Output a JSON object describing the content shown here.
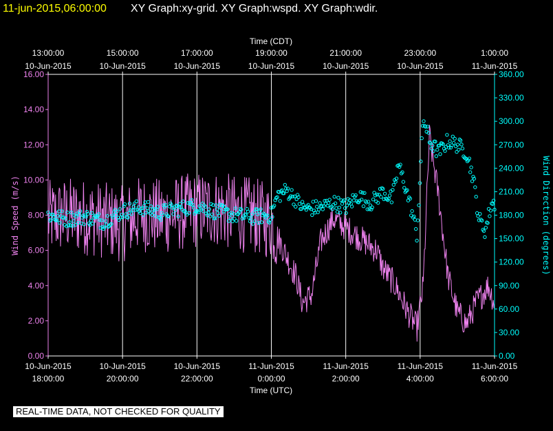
{
  "header": {
    "timestamp": "11-jun-2015,06:00:00",
    "graphs": "XY Graph:xy-grid.  XY Graph:wspd.  XY Graph:wdir."
  },
  "colors": {
    "background": "#000000",
    "timestamp": "#ffff00",
    "header": "#ffffff",
    "grid": "#ffffff",
    "wind_speed": "#ee82ee",
    "wind_direction": "#00ffff"
  },
  "disclaimer": "REAL-TIME DATA, NOT CHECKED FOR QUALITY",
  "chart_data": {
    "type": "line",
    "title": "",
    "top_axis": {
      "label": "Time (CDT)",
      "ticks": [
        {
          "time": "13:00:00",
          "date": "10-Jun-2015"
        },
        {
          "time": "15:00:00",
          "date": "10-Jun-2015"
        },
        {
          "time": "17:00:00",
          "date": "10-Jun-2015"
        },
        {
          "time": "19:00:00",
          "date": "10-Jun-2015"
        },
        {
          "time": "21:00:00",
          "date": "10-Jun-2015"
        },
        {
          "time": "23:00:00",
          "date": "10-Jun-2015"
        },
        {
          "time": "1:00:00",
          "date": "11-Jun-2015"
        }
      ]
    },
    "bottom_axis": {
      "label": "Time (UTC)",
      "ticks": [
        {
          "date": "10-Jun-2015",
          "time": "18:00:00"
        },
        {
          "date": "10-Jun-2015",
          "time": "20:00:00"
        },
        {
          "date": "10-Jun-2015",
          "time": "22:00:00"
        },
        {
          "date": "11-Jun-2015",
          "time": "0:00:00"
        },
        {
          "date": "11-Jun-2015",
          "time": "2:00:00"
        },
        {
          "date": "11-Jun-2015",
          "time": "4:00:00"
        },
        {
          "date": "11-Jun-2015",
          "time": "6:00:00"
        }
      ],
      "xlim": [
        "2015-06-10T18:00:00Z",
        "2015-06-11T06:00:00Z"
      ]
    },
    "left_axis": {
      "label": "Wind Speed (m/s)",
      "ylim": [
        0,
        16
      ],
      "ticks": [
        "0.00",
        "2.00",
        "4.00",
        "6.00",
        "8.00",
        "10.00",
        "12.00",
        "14.00",
        "16.00"
      ]
    },
    "right_axis": {
      "label": "Wind Direction (degrees)",
      "ylim": [
        0,
        360
      ],
      "ticks": [
        "0.00",
        "30.00",
        "60.00",
        "90.00",
        "120.00",
        "150.00",
        "180.00",
        "210.00",
        "240.00",
        "270.00",
        "300.00",
        "330.00",
        "360.00"
      ]
    },
    "grid": "vertical lines at bottom-axis ticks",
    "series": [
      {
        "kind": "line",
        "axis": "left",
        "x": [
          "2015-06-10T18:00Z",
          "2015-06-10T18:30Z",
          "2015-06-10T19:00Z",
          "2015-06-10T19:30Z",
          "2015-06-10T20:00Z",
          "2015-06-10T20:30Z",
          "2015-06-10T21:00Z",
          "2015-06-10T21:30Z",
          "2015-06-10T22:00Z",
          "2015-06-10T22:30Z",
          "2015-06-10T23:00Z",
          "2015-06-10T23:30Z",
          "2015-06-11T00:00Z",
          "2015-06-11T00:20Z",
          "2015-06-11T00:40Z",
          "2015-06-11T00:50Z",
          "2015-06-11T01:05Z",
          "2015-06-11T01:20Z",
          "2015-06-11T01:40Z",
          "2015-06-11T02:00Z",
          "2015-06-11T02:30Z",
          "2015-06-11T02:50Z",
          "2015-06-11T03:00Z",
          "2015-06-11T03:20Z",
          "2015-06-11T03:40Z",
          "2015-06-11T03:55Z",
          "2015-06-11T04:05Z",
          "2015-06-11T04:15Z",
          "2015-06-11T04:30Z",
          "2015-06-11T04:45Z",
          "2015-06-11T05:00Z",
          "2015-06-11T05:15Z",
          "2015-06-11T05:30Z",
          "2015-06-11T05:50Z",
          "2015-06-11T06:00Z"
        ],
        "values": [
          7.8,
          8.0,
          7.9,
          7.7,
          7.5,
          8.1,
          7.9,
          8.1,
          8.3,
          8.4,
          8.1,
          8.0,
          7.6,
          6.0,
          4.5,
          3.0,
          3.5,
          6.5,
          7.8,
          7.3,
          6.5,
          6.0,
          5.0,
          4.0,
          2.5,
          1.6,
          4.0,
          12.5,
          9.0,
          4.5,
          2.5,
          1.8,
          3.0,
          4.0,
          3.0
        ]
      },
      {
        "kind": "scatter",
        "axis": "right",
        "x": [
          "2015-06-10T18:00Z",
          "2015-06-10T18:30Z",
          "2015-06-10T19:00Z",
          "2015-06-10T19:30Z",
          "2015-06-10T20:00Z",
          "2015-06-10T20:30Z",
          "2015-06-10T21:00Z",
          "2015-06-10T21:30Z",
          "2015-06-10T22:00Z",
          "2015-06-10T22:30Z",
          "2015-06-10T23:00Z",
          "2015-06-10T23:30Z",
          "2015-06-11T00:00Z",
          "2015-06-11T00:10Z",
          "2015-06-11T00:25Z",
          "2015-06-11T00:40Z",
          "2015-06-11T00:50Z",
          "2015-06-11T01:00Z",
          "2015-06-11T01:20Z",
          "2015-06-11T01:40Z",
          "2015-06-11T02:00Z",
          "2015-06-11T02:20Z",
          "2015-06-11T02:40Z",
          "2015-06-11T03:00Z",
          "2015-06-11T03:15Z",
          "03:25",
          "2015-06-11T03:35Z",
          "2015-06-11T03:45Z",
          "2015-06-11T03:55Z",
          "2015-06-11T04:05Z",
          "2015-06-11T04:15Z",
          "2015-06-11T04:30Z",
          "2015-06-11T04:45Z",
          "2015-06-11T05:00Z",
          "2015-06-11T05:15Z",
          "2015-06-11T05:25Z",
          "2015-06-11T05:35Z",
          "2015-06-11T05:45Z",
          "2015-06-11T05:55Z"
        ],
        "values": [
          180,
          175,
          178,
          172,
          185,
          190,
          183,
          188,
          192,
          185,
          180,
          178,
          180,
          205,
          212,
          200,
          190,
          188,
          190,
          196,
          190,
          205,
          195,
          210,
          200,
          245,
          220,
          190,
          155,
          305,
          275,
          260,
          275,
          270,
          260,
          230,
          175,
          160,
          195
        ]
      }
    ]
  }
}
